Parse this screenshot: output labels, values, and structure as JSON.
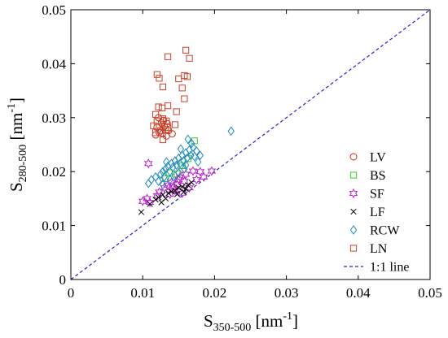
{
  "chart_data": {
    "type": "scatter",
    "xlabel": {
      "main": "S",
      "sub": "350-500",
      "unit": " [nm",
      "exp": "-1",
      "close": "]"
    },
    "ylabel": {
      "main": "S",
      "sub": "280-500",
      "unit": " [nm",
      "exp": "-1",
      "close": "]"
    },
    "xlim": [
      0,
      0.05
    ],
    "ylim": [
      0,
      0.05
    ],
    "xticks": [
      0,
      0.01,
      0.02,
      0.03,
      0.04,
      0.05
    ],
    "yticks": [
      0,
      0.01,
      0.02,
      0.03,
      0.04,
      0.05
    ],
    "xtick_labels": [
      "0",
      "0.01",
      "0.02",
      "0.03",
      "0.04",
      "0.05"
    ],
    "ytick_labels": [
      "0",
      "0.01",
      "0.02",
      "0.03",
      "0.04",
      "0.05"
    ],
    "grid": false,
    "legend_position": "right",
    "reference_line": {
      "name": "1:1 line",
      "x": [
        0,
        0.05
      ],
      "y": [
        0,
        0.05
      ],
      "color": "#2222cc",
      "dash": "dashed"
    },
    "series": [
      {
        "name": "LV",
        "marker": "circle",
        "color": "#cc2a1a",
        "points": [
          [
            0.0118,
            0.0268
          ],
          [
            0.0123,
            0.0273
          ],
          [
            0.0128,
            0.0271
          ],
          [
            0.0133,
            0.0266
          ],
          [
            0.012,
            0.0282
          ],
          [
            0.0126,
            0.029
          ],
          [
            0.013,
            0.0284
          ],
          [
            0.0136,
            0.0276
          ],
          [
            0.0141,
            0.027
          ],
          [
            0.0122,
            0.03
          ],
          [
            0.0129,
            0.0295
          ],
          [
            0.0134,
            0.0289
          ]
        ]
      },
      {
        "name": "BS",
        "marker": "square",
        "color": "#33cc22",
        "points": [
          [
            0.0172,
            0.0257
          ],
          [
            0.0137,
            0.0198
          ],
          [
            0.0148,
            0.0196
          ],
          [
            0.0155,
            0.0211
          ],
          [
            0.0132,
            0.0187
          ],
          [
            0.0163,
            0.0224
          ]
        ]
      },
      {
        "name": "SF",
        "marker": "hexagram",
        "color": "#bb22cc",
        "points": [
          [
            0.01,
            0.0145
          ],
          [
            0.0106,
            0.015
          ],
          [
            0.011,
            0.0143
          ],
          [
            0.012,
            0.0155
          ],
          [
            0.0123,
            0.0162
          ],
          [
            0.013,
            0.017
          ],
          [
            0.0135,
            0.0175
          ],
          [
            0.014,
            0.018
          ],
          [
            0.0142,
            0.0171
          ],
          [
            0.0145,
            0.0165
          ],
          [
            0.015,
            0.0185
          ],
          [
            0.0152,
            0.019
          ],
          [
            0.0155,
            0.016
          ],
          [
            0.016,
            0.0195
          ],
          [
            0.0165,
            0.017
          ],
          [
            0.017,
            0.0201
          ],
          [
            0.0175,
            0.0185
          ],
          [
            0.018,
            0.02
          ],
          [
            0.0185,
            0.019
          ],
          [
            0.0196,
            0.0201
          ],
          [
            0.0108,
            0.0215
          ],
          [
            0.0148,
            0.0176
          ],
          [
            0.0138,
            0.0158
          ],
          [
            0.0158,
            0.0182
          ]
        ]
      },
      {
        "name": "LF",
        "marker": "x",
        "color": "#000000",
        "points": [
          [
            0.0098,
            0.0125
          ],
          [
            0.011,
            0.014
          ],
          [
            0.0118,
            0.0148
          ],
          [
            0.0122,
            0.0152
          ],
          [
            0.0128,
            0.0157
          ],
          [
            0.0132,
            0.015
          ],
          [
            0.0136,
            0.016
          ],
          [
            0.014,
            0.0163
          ],
          [
            0.0145,
            0.0165
          ],
          [
            0.015,
            0.017
          ],
          [
            0.0155,
            0.0172
          ],
          [
            0.016,
            0.0168
          ],
          [
            0.0163,
            0.0175
          ],
          [
            0.0157,
            0.0162
          ],
          [
            0.0148,
            0.0158
          ],
          [
            0.0168,
            0.018
          ],
          [
            0.0126,
            0.0143
          ]
        ]
      },
      {
        "name": "RCW",
        "marker": "diamond",
        "color": "#1f8bbf",
        "points": [
          [
            0.0108,
            0.0178
          ],
          [
            0.0112,
            0.0185
          ],
          [
            0.0118,
            0.019
          ],
          [
            0.0122,
            0.0182
          ],
          [
            0.0125,
            0.0195
          ],
          [
            0.0128,
            0.02
          ],
          [
            0.013,
            0.019
          ],
          [
            0.0132,
            0.0205
          ],
          [
            0.0135,
            0.021
          ],
          [
            0.0138,
            0.02
          ],
          [
            0.014,
            0.0215
          ],
          [
            0.0142,
            0.0208
          ],
          [
            0.0145,
            0.022
          ],
          [
            0.0147,
            0.0212
          ],
          [
            0.015,
            0.0225
          ],
          [
            0.0152,
            0.0215
          ],
          [
            0.0155,
            0.023
          ],
          [
            0.0157,
            0.022
          ],
          [
            0.016,
            0.0235
          ],
          [
            0.0162,
            0.0225
          ],
          [
            0.0165,
            0.024
          ],
          [
            0.0167,
            0.023
          ],
          [
            0.017,
            0.0245
          ],
          [
            0.0172,
            0.0228
          ],
          [
            0.0175,
            0.0238
          ],
          [
            0.018,
            0.023
          ],
          [
            0.0163,
            0.026
          ],
          [
            0.0168,
            0.0252
          ],
          [
            0.0223,
            0.0275
          ],
          [
            0.0138,
            0.0185
          ],
          [
            0.015,
            0.0198
          ],
          [
            0.0158,
            0.0205
          ],
          [
            0.0128,
            0.0176
          ],
          [
            0.0145,
            0.0192
          ],
          [
            0.016,
            0.0212
          ],
          [
            0.0153,
            0.0242
          ],
          [
            0.0133,
            0.0218
          ],
          [
            0.0177,
            0.0218
          ]
        ]
      },
      {
        "name": "LN",
        "marker": "square",
        "color": "#c9402a",
        "points": [
          [
            0.016,
            0.0425
          ],
          [
            0.0135,
            0.0413
          ],
          [
            0.0165,
            0.041
          ],
          [
            0.012,
            0.038
          ],
          [
            0.0123,
            0.0373
          ],
          [
            0.0158,
            0.0378
          ],
          [
            0.015,
            0.0372
          ],
          [
            0.0162,
            0.0376
          ],
          [
            0.0128,
            0.0357
          ],
          [
            0.0155,
            0.0355
          ],
          [
            0.0158,
            0.0335
          ],
          [
            0.0135,
            0.0322
          ],
          [
            0.0122,
            0.032
          ],
          [
            0.0127,
            0.0318
          ],
          [
            0.0147,
            0.0311
          ],
          [
            0.0118,
            0.0306
          ],
          [
            0.0128,
            0.0298
          ],
          [
            0.0133,
            0.0294
          ],
          [
            0.0115,
            0.0285
          ],
          [
            0.0123,
            0.0283
          ],
          [
            0.0145,
            0.0287
          ],
          [
            0.0135,
            0.0282
          ],
          [
            0.0118,
            0.0272
          ],
          [
            0.0125,
            0.0276
          ],
          [
            0.0132,
            0.0278
          ],
          [
            0.0128,
            0.0259
          ],
          [
            0.012,
            0.0293
          ]
        ]
      }
    ]
  }
}
